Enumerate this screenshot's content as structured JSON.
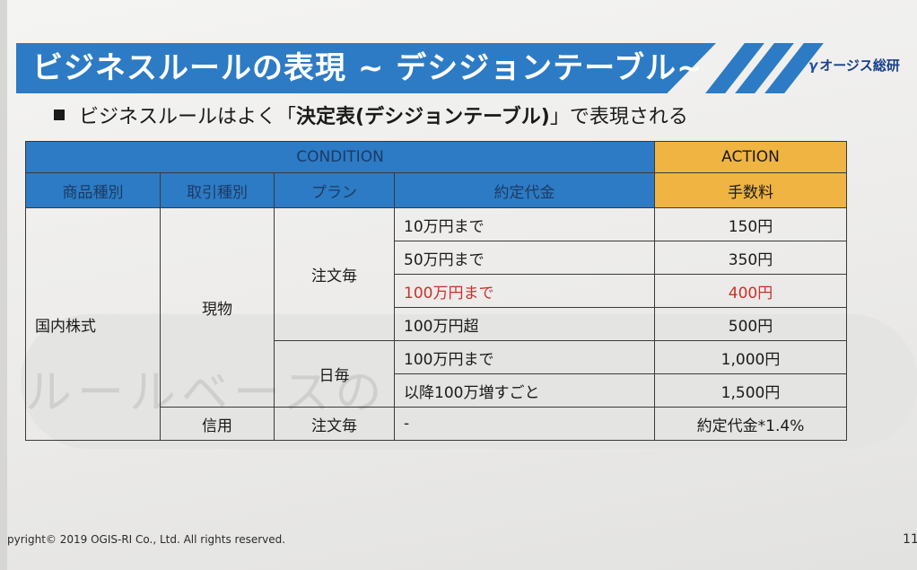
{
  "slide": {
    "title": "ビジネスルールの表現 ~ デシジョンテーブル~",
    "logo": {
      "mark": "γ",
      "text": "オージス総研"
    },
    "bullet": {
      "prefix": "ビジネスルールはよく「",
      "emphasis": "決定表(デシジョンテーブル)",
      "suffix": "」で表現される"
    },
    "watermark": "ルールベースの",
    "footer": "pyright© 2019 OGIS-RI Co., Ltd.  All rights reserved.",
    "page_number": "11"
  },
  "colors": {
    "banner": "#2d7bc4",
    "condition_header": "#2d7bc4",
    "action_header": "#f0b442",
    "highlight": "#c8322b"
  },
  "table": {
    "condition_label": "CONDITION",
    "action_label": "ACTION",
    "columns": [
      "商品種別",
      "取引種別",
      "プラン",
      "約定代金",
      "手数料"
    ],
    "product": "国内株式",
    "trade_types": [
      "現物",
      "信用"
    ],
    "plans": [
      "注文毎",
      "日毎",
      "注文毎"
    ],
    "rows": [
      {
        "amount": "10万円まで",
        "fee": "150円"
      },
      {
        "amount": "50万円まで",
        "fee": "350円"
      },
      {
        "amount": "100万円まで",
        "fee": "400円"
      },
      {
        "amount": "100万円超",
        "fee": "500円"
      },
      {
        "amount": "100万円まで",
        "fee": "1,000円"
      },
      {
        "amount": "以降100万増すごと",
        "fee": "1,500円"
      },
      {
        "amount": "-",
        "fee": "約定代金*1.4%"
      }
    ]
  }
}
